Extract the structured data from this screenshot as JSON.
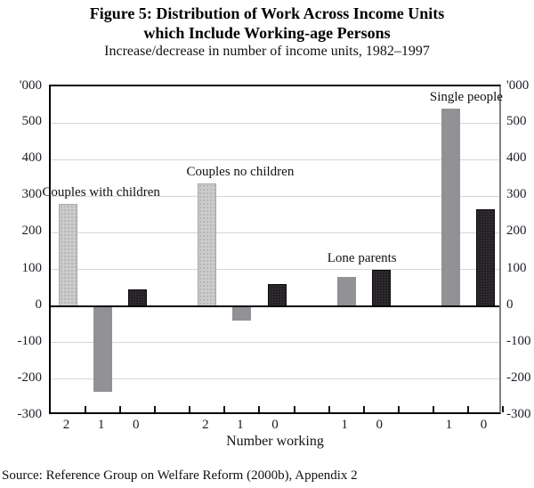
{
  "header": {
    "title_line1": "Figure 5: Distribution of Work Across Income Units",
    "title_line2": "which Include Working-age Persons",
    "subtitle": "Increase/decrease in number of income units, 1982–1997"
  },
  "footer": {
    "source": "Source: Reference Group on Welfare Reform (2000b), Appendix 2"
  },
  "chart_data": {
    "type": "bar",
    "unit_label": "'000",
    "xlabel": "Number working",
    "ylim": [
      -300,
      600
    ],
    "yticks": [
      500,
      400,
      300,
      200,
      100,
      0,
      -100,
      -200,
      -300
    ],
    "grid": true,
    "legend": "none",
    "gap_slots_between_groups": 1,
    "groups": [
      {
        "label": "Couples with children",
        "bars": [
          {
            "category": "2",
            "value": 280,
            "style": "light"
          },
          {
            "category": "1",
            "value": -235,
            "style": "mid"
          },
          {
            "category": "0",
            "value": 45,
            "style": "dark"
          }
        ]
      },
      {
        "label": "Couples no children",
        "bars": [
          {
            "category": "2",
            "value": 335,
            "style": "light"
          },
          {
            "category": "1",
            "value": -40,
            "style": "mid"
          },
          {
            "category": "0",
            "value": 60,
            "style": "dark"
          }
        ]
      },
      {
        "label": "Lone parents",
        "bars": [
          {
            "category": "1",
            "value": 80,
            "style": "mid"
          },
          {
            "category": "0",
            "value": 100,
            "style": "dark"
          }
        ]
      },
      {
        "label": "Single people",
        "bars": [
          {
            "category": "1",
            "value": 540,
            "style": "mid"
          },
          {
            "category": "0",
            "value": 265,
            "style": "dark"
          }
        ]
      }
    ],
    "colors": {
      "light": "#cbcbcf",
      "mid": "#919196",
      "dark": "#241f25"
    }
  }
}
